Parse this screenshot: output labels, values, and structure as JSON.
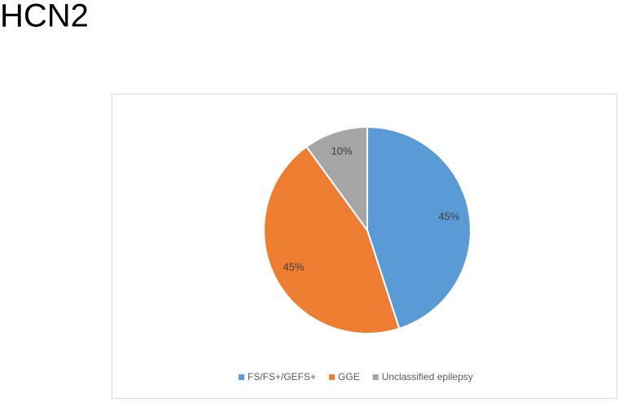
{
  "chart_data": {
    "type": "pie",
    "title": "HCN2",
    "categories": [
      "FS/FS+/GEFS+",
      "GGE",
      "Unclassified epilepsy"
    ],
    "values": [
      45,
      45,
      10
    ],
    "value_labels": [
      "45%",
      "45%",
      "10%"
    ],
    "colors": [
      "#5b9bd5",
      "#ed7d31",
      "#a5a5a5"
    ],
    "legend": "bottom"
  }
}
